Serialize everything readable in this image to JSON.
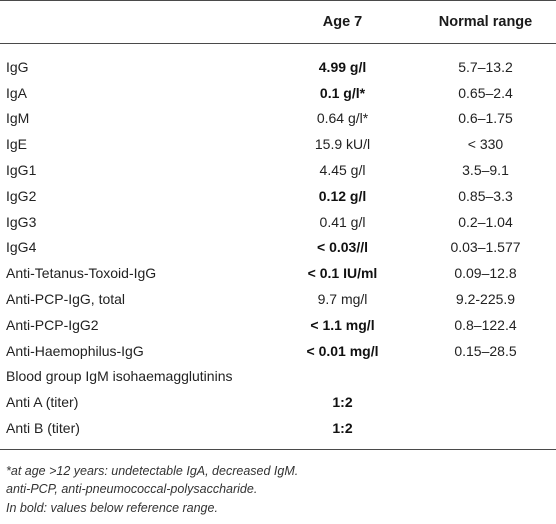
{
  "header": {
    "col_test": "",
    "col_age": "Age 7",
    "col_range": "Normal range"
  },
  "rows": [
    {
      "label": "IgG",
      "value": "4.99 g/l",
      "bold": true,
      "range": "5.7–13.2"
    },
    {
      "label": "IgA",
      "value": "0.1 g/l*",
      "bold": true,
      "range": "0.65–2.4"
    },
    {
      "label": "IgM",
      "value": "0.64 g/l*",
      "bold": false,
      "range": "0.6–1.75"
    },
    {
      "label": "IgE",
      "value": "15.9 kU/l",
      "bold": false,
      "range": "< 330"
    },
    {
      "label": "IgG1",
      "value": "4.45 g/l",
      "bold": false,
      "range": "3.5–9.1"
    },
    {
      "label": "IgG2",
      "value": "0.12 g/l",
      "bold": true,
      "range": "0.85–3.3"
    },
    {
      "label": "IgG3",
      "value": "0.41 g/l",
      "bold": false,
      "range": "0.2–1.04"
    },
    {
      "label": "IgG4",
      "value": "< 0.03//l",
      "bold": true,
      "range": "0.03–1.577"
    },
    {
      "label": "Anti-Tetanus-Toxoid-IgG",
      "value": "< 0.1 IU/ml",
      "bold": true,
      "range": "0.09–12.8"
    },
    {
      "label": "Anti-PCP-IgG, total",
      "value": "9.7 mg/l",
      "bold": false,
      "range": "9.2-225.9"
    },
    {
      "label": "Anti-PCP-IgG2",
      "value": "< 1.1 mg/l",
      "bold": true,
      "range": "0.8–122.4"
    },
    {
      "label": "Anti-Haemophilus-IgG",
      "value": "< 0.01 mg/l",
      "bold": true,
      "range": "0.15–28.5"
    }
  ],
  "section_label": "Blood group IgM isohaemagglutinins",
  "titer_rows": [
    {
      "label": "Anti A (titer)",
      "value": "1:2",
      "bold": true,
      "range": ""
    },
    {
      "label": "Anti B (titer)",
      "value": "1:2",
      "bold": true,
      "range": ""
    }
  ],
  "footnotes": [
    "*at age >12 years: undetectable IgA, decreased IgM.",
    "anti-PCP, anti-pneumococcal-polysaccharide.",
    "In bold: values below reference range."
  ]
}
